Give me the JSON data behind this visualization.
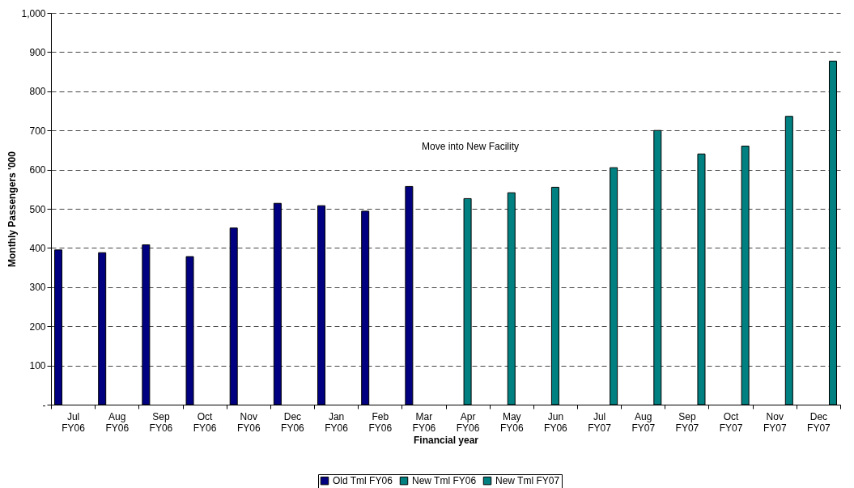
{
  "chart_data": {
    "type": "bar",
    "xlabel": "Financial year",
    "ylabel": "Monthly Passengers '000",
    "categories": [
      "Jul FY06",
      "Aug FY06",
      "Sep FY06",
      "Oct FY06",
      "Nov FY06",
      "Dec FY06",
      "Jan FY06",
      "Feb FY06",
      "Mar FY06",
      "Apr FY06",
      "May FY06",
      "Jun FY06",
      "Jul FY07",
      "Aug FY07",
      "Sep FY07",
      "Oct FY07",
      "Nov FY07",
      "Dec FY07"
    ],
    "series": [
      {
        "name": "Old Tml FY06",
        "color": "#000080",
        "values": [
          395,
          388,
          408,
          378,
          451,
          514,
          508,
          494,
          557,
          null,
          null,
          null,
          null,
          null,
          null,
          null,
          null,
          null
        ]
      },
      {
        "name": "New Tml FY06",
        "color": "#008080",
        "values": [
          null,
          null,
          null,
          null,
          null,
          null,
          null,
          null,
          null,
          526,
          541,
          555,
          null,
          null,
          null,
          null,
          null,
          null
        ]
      },
      {
        "name": "New Tml FY07",
        "color": "#008080",
        "values": [
          null,
          null,
          null,
          null,
          null,
          null,
          null,
          null,
          null,
          null,
          null,
          null,
          605,
          700,
          640,
          660,
          736,
          877
        ]
      }
    ],
    "ylim": [
      0,
      1000
    ],
    "yticks": [
      {
        "value": 0,
        "label": "-"
      },
      100,
      200,
      300,
      400,
      500,
      600,
      700,
      800,
      900,
      {
        "value": 1000,
        "label": "1,000"
      }
    ],
    "grid": "y",
    "legend": "bottom",
    "annotations": [
      "Move into New Facility"
    ]
  }
}
